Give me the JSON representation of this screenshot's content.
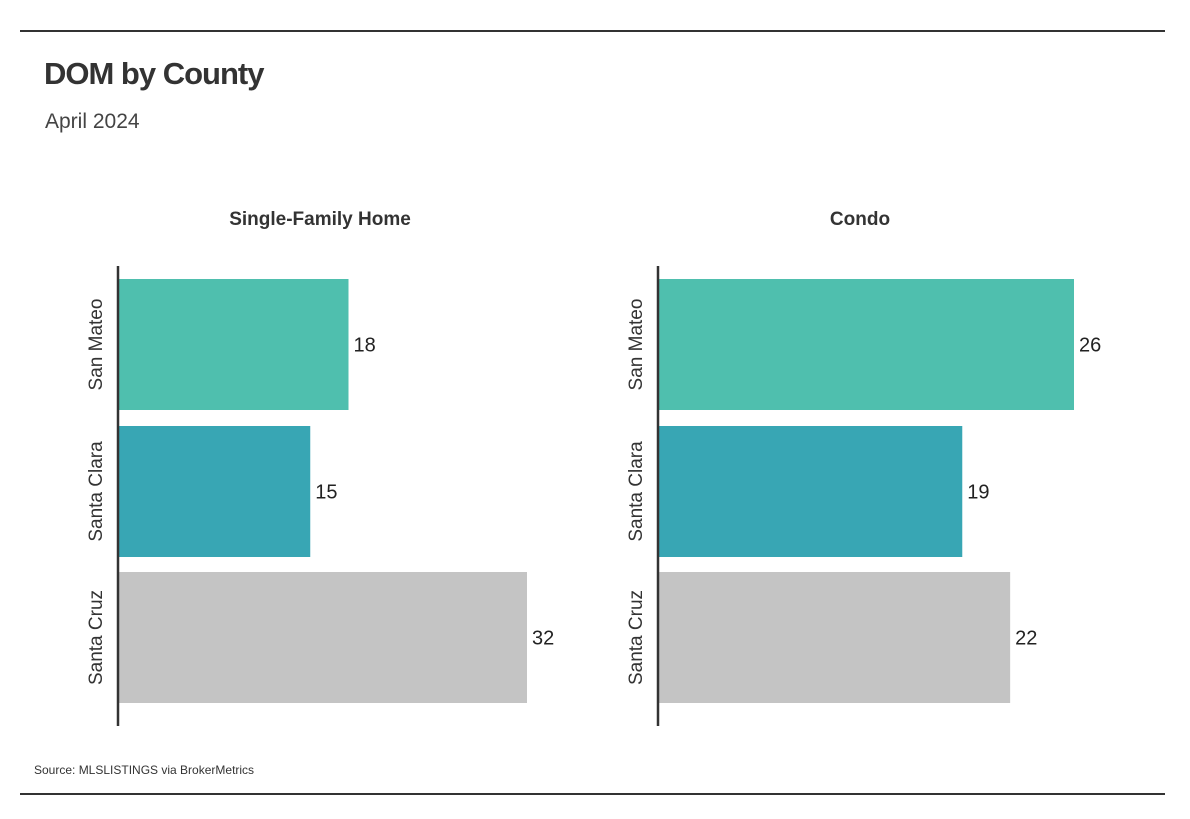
{
  "header": {
    "title": "DOM by County",
    "subtitle": "April 2024"
  },
  "footer": {
    "source": "Source:  MLSLISTINGS via BrokerMetrics"
  },
  "colors": {
    "San Mateo": "#4fbfae",
    "Santa Clara": "#38a6b4",
    "Santa Cruz": "#c4c4c4",
    "axis": "#333333"
  },
  "chart_data": [
    {
      "type": "bar",
      "orientation": "horizontal",
      "title": "Single-Family Home",
      "categories": [
        "San Mateo",
        "Santa Clara",
        "Santa Cruz"
      ],
      "values": [
        18,
        15,
        32
      ],
      "xlabel": "",
      "ylabel": "",
      "xlim": [
        0,
        32
      ]
    },
    {
      "type": "bar",
      "orientation": "horizontal",
      "title": "Condo",
      "categories": [
        "San Mateo",
        "Santa Clara",
        "Santa Cruz"
      ],
      "values": [
        26,
        19,
        22
      ],
      "xlabel": "",
      "ylabel": "",
      "xlim": [
        0,
        26
      ]
    }
  ]
}
